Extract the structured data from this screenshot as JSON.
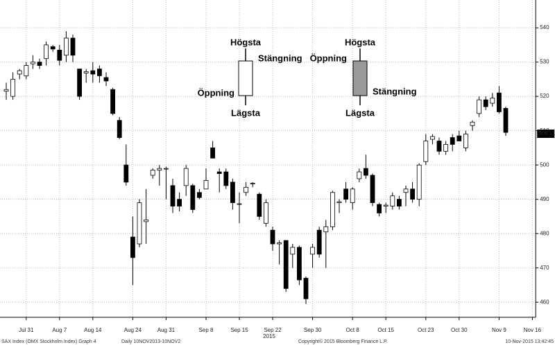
{
  "chart_data": {
    "type": "candlestick",
    "categories": [
      null,
      null,
      null,
      "Jul 31",
      null,
      null,
      null,
      null,
      "Aug 7",
      null,
      null,
      null,
      null,
      "Aug 14",
      null,
      null,
      null,
      null,
      null,
      "Aug 24",
      null,
      null,
      null,
      null,
      "Aug 31",
      null,
      null,
      null,
      null,
      null,
      "Sep 8",
      null,
      null,
      null,
      null,
      "Sep 15",
      null,
      null,
      null,
      null,
      "Sep 22",
      null,
      null,
      null,
      null,
      null,
      "Sep 30",
      null,
      null,
      null,
      null,
      null,
      "Oct 8",
      null,
      null,
      null,
      null,
      "Oct 15",
      null,
      null,
      null,
      null,
      null,
      "Oct 23",
      null,
      null,
      null,
      null,
      "Oct 30",
      null,
      null,
      null,
      null,
      null,
      "Nov 9",
      null,
      null,
      null,
      null,
      "Nov 16"
    ],
    "open": [
      521.5,
      520,
      526.5,
      526,
      529.5,
      530,
      531,
      534.5,
      533.5,
      532,
      537,
      528,
      526.8,
      527.5,
      528,
      525.5,
      522,
      513,
      500,
      479,
      477,
      483.5,
      497,
      498.5,
      498.8,
      494,
      490,
      494,
      494,
      492,
      493,
      505,
      498,
      498,
      495,
      488.5,
      492,
      494.5,
      491.5,
      483,
      481,
      477,
      478,
      474,
      476,
      467,
      474,
      481,
      480.5,
      482,
      489,
      493,
      489,
      496,
      499,
      497,
      488.5,
      488,
      488,
      490,
      492,
      493,
      490,
      501,
      507.5,
      507,
      504,
      508,
      508.5,
      505,
      511.5,
      515,
      519,
      518,
      521,
      516.5,
      null,
      null,
      null,
      null
    ],
    "high": [
      524,
      527,
      528,
      530,
      532,
      531,
      536,
      535,
      535,
      539,
      538,
      528,
      528,
      530,
      529,
      527,
      522.5,
      514,
      506,
      485,
      490,
      493,
      499,
      500,
      499.5,
      496,
      492,
      500,
      494.5,
      493,
      499,
      507,
      499,
      499,
      496,
      492,
      495,
      495,
      492,
      490,
      482,
      478,
      478,
      477,
      476.5,
      467.5,
      477,
      482,
      484,
      492.5,
      490,
      495,
      493.5,
      499,
      503,
      497.5,
      489,
      489,
      492,
      491,
      494,
      495,
      500.5,
      509,
      509,
      508,
      507,
      509,
      510,
      510,
      513,
      520,
      520,
      521,
      523,
      517,
      null,
      null,
      null,
      null
    ],
    "low": [
      519,
      519,
      525,
      525,
      528,
      528,
      529,
      533,
      529,
      530,
      530,
      519,
      524,
      524,
      524,
      523,
      514.5,
      507.5,
      494,
      465,
      476,
      477,
      496,
      494,
      490,
      486,
      486.5,
      491,
      486,
      490,
      493,
      502,
      492,
      493,
      487,
      483,
      491,
      493.5,
      484,
      482,
      475,
      471,
      463,
      470,
      465,
      459.5,
      470,
      473,
      470,
      481,
      486,
      489,
      487,
      495,
      496,
      488,
      485,
      486,
      487,
      487,
      488,
      489,
      488,
      500,
      506,
      503,
      503,
      504,
      507,
      504,
      510,
      514,
      516,
      517,
      515,
      508.5,
      null,
      null,
      null,
      null
    ],
    "close": [
      522,
      525,
      527.5,
      529,
      530,
      529,
      535,
      533.8,
      530.5,
      537,
      532,
      520,
      527.2,
      526.5,
      526,
      524.5,
      515,
      508,
      495,
      473,
      489,
      484,
      498.5,
      499,
      499,
      488,
      488,
      499,
      487,
      490.5,
      495.5,
      502,
      497.5,
      494,
      489,
      488.7,
      493.5,
      494.7,
      485,
      489,
      477,
      477.3,
      464,
      476,
      466.5,
      461,
      476,
      474,
      482,
      492,
      489.3,
      490,
      493,
      498,
      497,
      489,
      486,
      488.3,
      491,
      488,
      493,
      490,
      500,
      507,
      508.3,
      504,
      506,
      506,
      507,
      509,
      512.5,
      519,
      517,
      519.5,
      515.5,
      509.5,
      null,
      null,
      null,
      null
    ],
    "up_color": "#ffffff",
    "down_color": "#000000",
    "ylim": [
      455.6,
      548.1
    ],
    "yticks": [
      460,
      470,
      480,
      490,
      500,
      510,
      520,
      530,
      540
    ],
    "grid": true,
    "last_price": 509.11,
    "year_label": "2015",
    "annotations": {
      "high1": "Högsta",
      "close1": "Stängning",
      "open1": "Öppning",
      "low1": "Lägsta",
      "high2": "Högsta",
      "open2": "Öppning",
      "close2": "Stängning",
      "low2": "Lägsta"
    },
    "footer": {
      "index": "SAX Index (OMX Stockholm Index) Graph 4",
      "period": "Daily 10NOV2013-10NOV2",
      "copyright": "Copyright© 2015 Bloomberg Finance L.P.",
      "timestamp": "10-Nov-2015 13:42:45"
    }
  }
}
